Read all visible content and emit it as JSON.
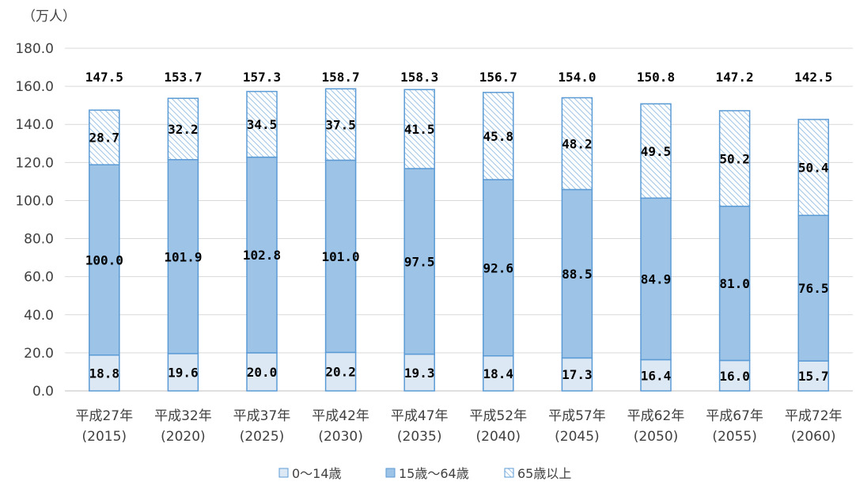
{
  "chart_data": {
    "type": "bar",
    "stacked": true,
    "unit_label": "（万人）",
    "ylim": [
      0,
      180
    ],
    "yticks": [
      "0.0",
      "20.0",
      "40.0",
      "60.0",
      "80.0",
      "100.0",
      "120.0",
      "140.0",
      "160.0",
      "180.0"
    ],
    "tick_values": [
      0,
      20,
      40,
      60,
      80,
      100,
      120,
      140,
      160,
      180
    ],
    "categories": [
      [
        "平成27年",
        "(2015)"
      ],
      [
        "平成32年",
        "(2020)"
      ],
      [
        "平成37年",
        "(2025)"
      ],
      [
        "平成42年",
        "(2030)"
      ],
      [
        "平成47年",
        "(2035)"
      ],
      [
        "平成52年",
        "(2040)"
      ],
      [
        "平成57年",
        "(2045)"
      ],
      [
        "平成62年",
        "(2050)"
      ],
      [
        "平成67年",
        "(2055)"
      ],
      [
        "平成72年",
        "(2060)"
      ]
    ],
    "series": [
      {
        "name": "0～14歳",
        "values": [
          18.8,
          19.6,
          20.0,
          20.2,
          19.3,
          18.4,
          17.3,
          16.4,
          16.0,
          15.7
        ],
        "labels": [
          "18.8",
          "19.6",
          "20.0",
          "20.2",
          "19.3",
          "18.4",
          "17.3",
          "16.4",
          "16.0",
          "15.7"
        ],
        "color": "#dde8f5",
        "pattern": "solid"
      },
      {
        "name": "15歳～64歳",
        "values": [
          100.0,
          101.9,
          102.8,
          101.0,
          97.5,
          92.6,
          88.5,
          84.9,
          81.0,
          76.5
        ],
        "labels": [
          "100.0",
          "101.9",
          "102.8",
          "101.0",
          "97.5",
          "92.6",
          "88.5",
          "84.9",
          "81.0",
          "76.5"
        ],
        "color": "#9dc3e6",
        "pattern": "solid"
      },
      {
        "name": "65歳以上",
        "values": [
          28.7,
          32.2,
          34.5,
          37.5,
          41.5,
          45.8,
          48.2,
          49.5,
          50.2,
          50.4
        ],
        "labels": [
          "28.7",
          "32.2",
          "34.5",
          "37.5",
          "41.5",
          "45.8",
          "48.2",
          "49.5",
          "50.2",
          "50.4"
        ],
        "color": "#9dc3e6",
        "pattern": "hatch"
      }
    ],
    "totals": [
      147.5,
      153.7,
      157.3,
      158.7,
      158.3,
      156.7,
      154.0,
      150.8,
      147.2,
      142.5
    ],
    "total_labels": [
      "147.5",
      "153.7",
      "157.3",
      "158.7",
      "158.3",
      "156.7",
      "154.0",
      "150.8",
      "147.2",
      "142.5"
    ],
    "grid": true,
    "legend": "bottom-center",
    "border_color": "#5b9bd5",
    "grid_color": "#d9d9d9"
  }
}
